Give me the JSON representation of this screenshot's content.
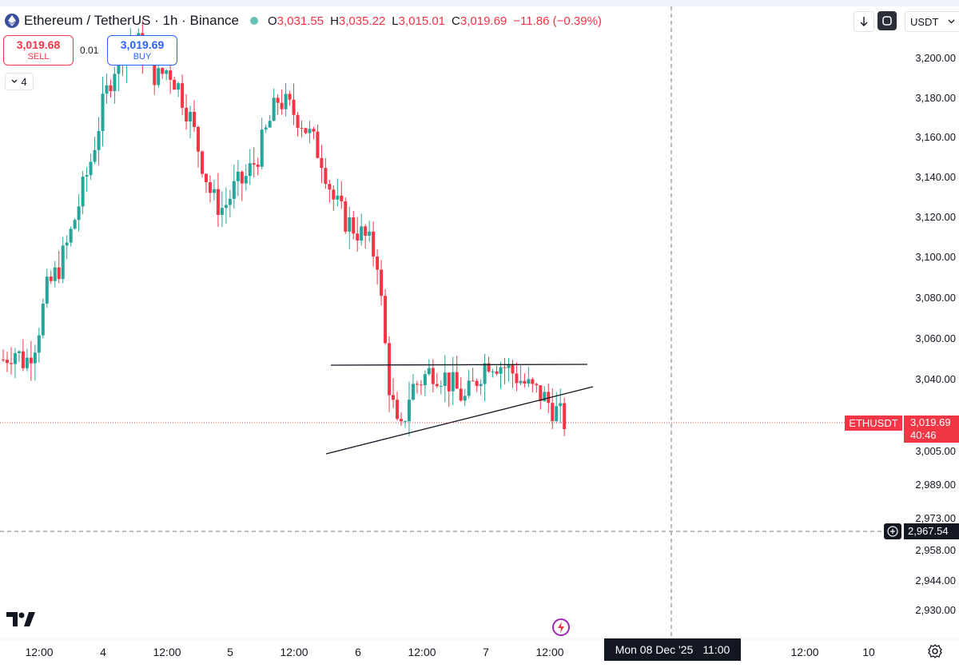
{
  "header": {
    "symbol_title": "Ethereum / TetherUS · 1h · Binance",
    "ohlc": [
      {
        "key": "O",
        "value": "3,031.55"
      },
      {
        "key": "H",
        "value": "3,035.22"
      },
      {
        "key": "L",
        "value": "3,015.01"
      },
      {
        "key": "C",
        "value": "3,019.69"
      }
    ],
    "change": "−11.86 (−0.39%)"
  },
  "trade": {
    "sell_price": "3,019.68",
    "sell_label": "SELL",
    "spread": "0.01",
    "buy_price": "3,019.69",
    "buy_label": "BUY"
  },
  "indicators_count": "4",
  "currency_select": "USDT",
  "price_axis": [
    {
      "label": "3,200.00",
      "value": 3200
    },
    {
      "label": "3,180.00",
      "value": 3180
    },
    {
      "label": "3,160.00",
      "value": 3160
    },
    {
      "label": "3,140.00",
      "value": 3140
    },
    {
      "label": "3,120.00",
      "value": 3120
    },
    {
      "label": "3,100.00",
      "value": 3100
    },
    {
      "label": "3,080.00",
      "value": 3080
    },
    {
      "label": "3,060.00",
      "value": 3060
    },
    {
      "label": "3,040.00",
      "value": 3040
    },
    {
      "label": "3,005.00",
      "value": 3005
    },
    {
      "label": "2,989.00",
      "value": 2989
    },
    {
      "label": "2,973.00",
      "value": 2973
    },
    {
      "label": "2,958.00",
      "value": 2958
    },
    {
      "label": "2,944.00",
      "value": 2944
    },
    {
      "label": "2,930.00",
      "value": 2930
    }
  ],
  "time_axis": [
    "12:00",
    "4",
    "12:00",
    "5",
    "12:00",
    "6",
    "12:00",
    "7",
    "12:00",
    "12:00",
    "10"
  ],
  "symbol_tag": "ETHUSDT",
  "last_price": "3,019.69",
  "countdown": "40:46",
  "crosshair_price": "2,967.54",
  "crosshair_time": "Mon 08 Dec '25",
  "crosshair_hour": "11:00",
  "colors": {
    "up": "#26a69a",
    "down": "#f23645",
    "text": "#131722",
    "buy": "#2962ff"
  },
  "icons": [
    "ethereum-logo-icon",
    "arrow-down-icon",
    "refresh-icon",
    "chevron-down-icon",
    "plus-circle-icon",
    "tradingview-logo-icon",
    "flash-icon",
    "gear-icon"
  ],
  "chart_data": {
    "type": "candlestick",
    "series_trend": [
      3050,
      3055,
      3048,
      3060,
      3085,
      3095,
      3110,
      3130,
      3150,
      3175,
      3195,
      3205,
      3210,
      3200,
      3190,
      3195,
      3185,
      3170,
      3150,
      3130,
      3125,
      3135,
      3140,
      3150,
      3165,
      3180,
      3175,
      3170,
      3160,
      3150,
      3130,
      3120,
      3115,
      3110,
      3100,
      3040,
      3010,
      3035,
      3040,
      3045,
      3042,
      3036,
      3030,
      3040,
      3050,
      3048,
      3045,
      3040,
      3035,
      3032,
      3026,
      3019.69
    ]
  }
}
